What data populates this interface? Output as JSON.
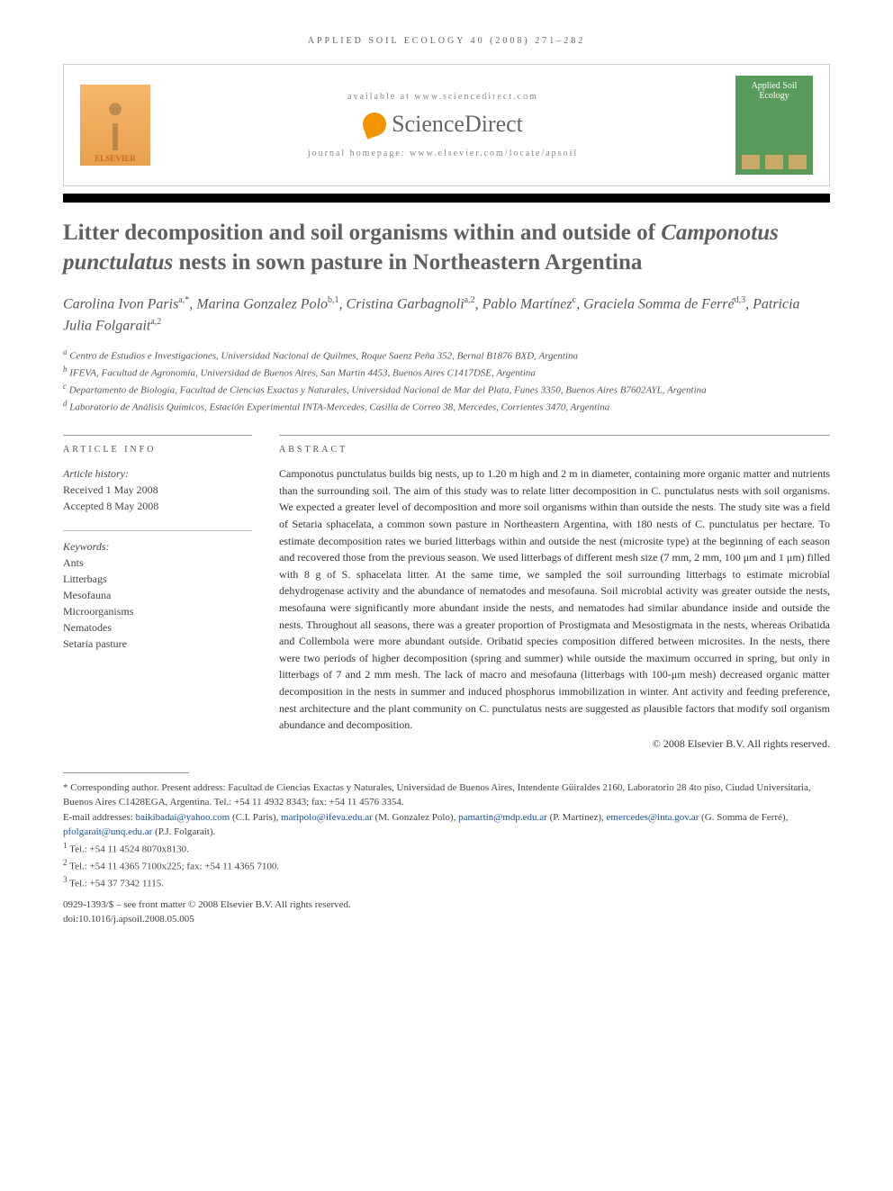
{
  "running_head": "APPLIED SOIL ECOLOGY 40 (2008) 271–282",
  "header": {
    "elsevier_label": "ELSEVIER",
    "available_text": "available at www.sciencedirect.com",
    "sciencedirect_label": "ScienceDirect",
    "homepage_text": "journal homepage: www.elsevier.com/locate/apsoil",
    "journal_cover_title": "Applied Soil Ecology"
  },
  "title_parts": {
    "pre": "Litter decomposition and soil organisms within and outside of ",
    "species": "Camponotus punctulatus",
    "post": " nests in sown pasture in Northeastern Argentina"
  },
  "authors_html": "Carolina Ivon Paris<sup>a,*</sup>, Marina Gonzalez Polo<sup>b,1</sup>, Cristina Garbagnoli<sup>a,2</sup>, Pablo Martínez<sup>c</sup>, Graciela Somma de Ferré<sup>d,3</sup>, Patricia Julia Folgarait<sup>a,2</sup>",
  "affiliations": [
    "a Centro de Estudios e Investigaciones, Universidad Nacional de Quilmes, Roque Saenz Peña 352, Bernal B1876 BXD, Argentina",
    "b IFEVA, Facultad de Agronomía, Universidad de Buenos Aires, San Martín 4453, Buenos Aires C1417DSE, Argentina",
    "c Departamento de Biología, Facultad de Ciencias Exactas y Naturales, Universidad Nacional de Mar del Plata, Funes 3350, Buenos Aires B7602AYL, Argentina",
    "d Laboratorio de Análisis Químicos, Estación Experimental INTA-Mercedes, Casilla de Correo 38, Mercedes, Corrientes 3470, Argentina"
  ],
  "article_info": {
    "heading": "ARTICLE INFO",
    "history_label": "Article history:",
    "received": "Received 1 May 2008",
    "accepted": "Accepted 8 May 2008",
    "keywords_label": "Keywords:",
    "keywords": [
      "Ants",
      "Litterbags",
      "Mesofauna",
      "Microorganisms",
      "Nematodes",
      "Setaria pasture"
    ]
  },
  "abstract": {
    "heading": "ABSTRACT",
    "text": "Camponotus punctulatus builds big nests, up to 1.20 m high and 2 m in diameter, containing more organic matter and nutrients than the surrounding soil. The aim of this study was to relate litter decomposition in C. punctulatus nests with soil organisms. We expected a greater level of decomposition and more soil organisms within than outside the nests. The study site was a field of Setaria sphacelata, a common sown pasture in Northeastern Argentina, with 180 nests of C. punctulatus per hectare. To estimate decomposition rates we buried litterbags within and outside the nest (microsite type) at the beginning of each season and recovered those from the previous season. We used litterbags of different mesh size (7 mm, 2 mm, 100 μm and 1 μm) filled with 8 g of S. sphacelata litter. At the same time, we sampled the soil surrounding litterbags to estimate microbial dehydrogenase activity and the abundance of nematodes and mesofauna. Soil microbial activity was greater outside the nests, mesofauna were significantly more abundant inside the nests, and nematodes had similar abundance inside and outside the nests. Throughout all seasons, there was a greater proportion of Prostigmata and Mesostigmata in the nests, whereas Oribatida and Collembola were more abundant outside. Oribatid species composition differed between microsites. In the nests, there were two periods of higher decomposition (spring and summer) while outside the maximum occurred in spring, but only in litterbags of 7 and 2 mm mesh. The lack of macro and mesofauna (litterbags with 100-μm mesh) decreased organic matter decomposition in the nests in summer and induced phosphorus immobilization in winter. Ant activity and feeding preference, nest architecture and the plant community on C. punctulatus nests are suggested as plausible factors that modify soil organism abundance and decomposition.",
    "copyright": "© 2008 Elsevier B.V. All rights reserved."
  },
  "footnotes": {
    "corresponding": "* Corresponding author. Present address: Facultad de Ciencias Exactas y Naturales, Universidad de Buenos Aires, Intendente Güiraldes 2160, Laboratorio 28 4to piso, Ciudad Universitaria, Buenos Aires C1428EGA, Argentina. Tel.: +54 11 4932 8343; fax: +54 11 4576 3354.",
    "emails_label": "E-mail addresses: ",
    "emails": [
      {
        "addr": "baikibadai@yahoo.com",
        "who": " (C.I. Paris), "
      },
      {
        "addr": "maripolo@ifeva.edu.ar",
        "who": " (M. Gonzalez Polo), "
      },
      {
        "addr": "pamartin@mdp.edu.ar",
        "who": " (P. Martínez), "
      },
      {
        "addr": "emercedes@inta.gov.ar",
        "who": " (G. Somma de Ferré), "
      },
      {
        "addr": "pfolgarait@unq.edu.ar",
        "who": " (P.J. Folgarait)."
      }
    ],
    "tels": [
      "1 Tel.: +54 11 4524 8070x8130.",
      "2 Tel.: +54 11 4365 7100x225; fax: +54 11 4365 7100.",
      "3 Tel.: +54 37 7342 1115."
    ],
    "issn_line": "0929-1393/$ – see front matter © 2008 Elsevier B.V. All rights reserved.",
    "doi_line": "doi:10.1016/j.apsoil.2008.05.005"
  }
}
